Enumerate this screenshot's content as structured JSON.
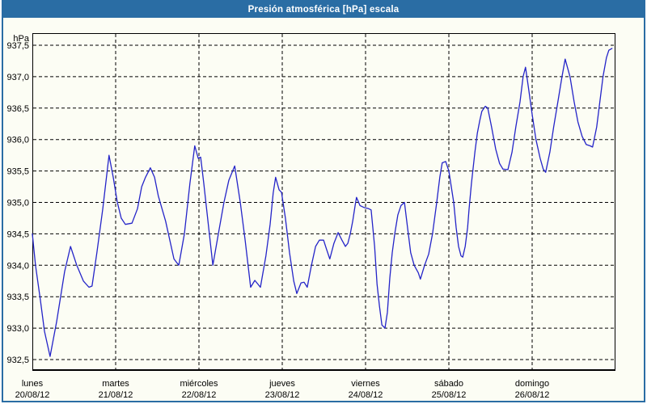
{
  "window": {
    "title": "Presión atmosférica [hPa] escala",
    "titlebar_color": "#2a6da4",
    "background": "#fcfdf4"
  },
  "chart_data": {
    "type": "line",
    "title": "Presión atmosférica [hPa] escala",
    "y_unit": "hPa",
    "ylabel": "hPa",
    "xlabel": "",
    "y_min": 932.5,
    "y_max": 937.5,
    "y_step": 0.5,
    "y_tick_labels": [
      "937,5",
      "937,0",
      "936,5",
      "936,0",
      "935,5",
      "935,0",
      "934,5",
      "934,0",
      "933,5",
      "933,0",
      "932,5"
    ],
    "grid": "dashed-black",
    "grid_color": "#000000",
    "line_color": "#2424c8",
    "legend": "none",
    "x_span_hours": 168,
    "x_days": [
      {
        "name": "lunes",
        "date": "20/08/12"
      },
      {
        "name": "martes",
        "date": "21/08/12"
      },
      {
        "name": "miércoles",
        "date": "22/08/12"
      },
      {
        "name": "jueves",
        "date": "23/08/12"
      },
      {
        "name": "viernes",
        "date": "24/08/12"
      },
      {
        "name": "sábado",
        "date": "25/08/12"
      },
      {
        "name": "domingo",
        "date": "26/08/12"
      }
    ],
    "series": [
      {
        "name": "Presión atmosférica",
        "unit": "hPa",
        "points_hours_value": [
          [
            0.0,
            934.5
          ],
          [
            0.9,
            934.0
          ],
          [
            2.3,
            933.45
          ],
          [
            3.5,
            932.95
          ],
          [
            5.1,
            932.55
          ],
          [
            7.0,
            933.1
          ],
          [
            9.3,
            933.9
          ],
          [
            11.0,
            934.3
          ],
          [
            12.8,
            934.0
          ],
          [
            14.7,
            933.75
          ],
          [
            16.3,
            933.65
          ],
          [
            17.2,
            933.67
          ],
          [
            18.6,
            934.2
          ],
          [
            20.3,
            934.9
          ],
          [
            22.1,
            935.75
          ],
          [
            23.3,
            935.4
          ],
          [
            24.5,
            935.0
          ],
          [
            25.6,
            934.75
          ],
          [
            26.8,
            934.65
          ],
          [
            28.7,
            934.67
          ],
          [
            30.3,
            934.9
          ],
          [
            31.5,
            935.25
          ],
          [
            32.6,
            935.4
          ],
          [
            34.0,
            935.55
          ],
          [
            35.2,
            935.4
          ],
          [
            36.3,
            935.1
          ],
          [
            38.4,
            934.7
          ],
          [
            40.8,
            934.1
          ],
          [
            42.2,
            934.0
          ],
          [
            43.8,
            934.5
          ],
          [
            45.4,
            935.3
          ],
          [
            46.8,
            935.9
          ],
          [
            47.8,
            935.7
          ],
          [
            48.5,
            935.72
          ],
          [
            49.4,
            935.3
          ],
          [
            50.8,
            934.6
          ],
          [
            52.0,
            934.0
          ],
          [
            53.6,
            934.5
          ],
          [
            55.2,
            935.0
          ],
          [
            56.6,
            935.35
          ],
          [
            58.3,
            935.58
          ],
          [
            59.9,
            935.0
          ],
          [
            61.3,
            934.4
          ],
          [
            62.9,
            933.65
          ],
          [
            64.1,
            933.76
          ],
          [
            65.7,
            933.65
          ],
          [
            67.3,
            934.15
          ],
          [
            68.5,
            934.65
          ],
          [
            69.4,
            935.15
          ],
          [
            70.1,
            935.4
          ],
          [
            71.1,
            935.2
          ],
          [
            71.8,
            935.16
          ],
          [
            72.9,
            934.75
          ],
          [
            74.1,
            934.2
          ],
          [
            75.3,
            933.75
          ],
          [
            76.2,
            933.55
          ],
          [
            77.4,
            933.72
          ],
          [
            78.3,
            933.73
          ],
          [
            79.2,
            933.65
          ],
          [
            80.4,
            934.0
          ],
          [
            81.6,
            934.3
          ],
          [
            82.7,
            934.4
          ],
          [
            83.9,
            934.4
          ],
          [
            84.8,
            934.25
          ],
          [
            85.7,
            934.1
          ],
          [
            86.9,
            934.35
          ],
          [
            88.1,
            934.52
          ],
          [
            89.2,
            934.4
          ],
          [
            90.2,
            934.3
          ],
          [
            90.9,
            934.35
          ],
          [
            91.6,
            934.5
          ],
          [
            92.3,
            934.7
          ],
          [
            93.0,
            934.95
          ],
          [
            93.4,
            935.08
          ],
          [
            94.4,
            934.95
          ],
          [
            95.5,
            934.92
          ],
          [
            96.9,
            934.9
          ],
          [
            97.6,
            934.88
          ],
          [
            98.6,
            934.3
          ],
          [
            99.3,
            933.7
          ],
          [
            100.0,
            933.35
          ],
          [
            100.7,
            933.05
          ],
          [
            101.6,
            933.0
          ],
          [
            102.3,
            933.25
          ],
          [
            103.0,
            933.8
          ],
          [
            103.7,
            934.2
          ],
          [
            104.4,
            934.5
          ],
          [
            105.3,
            934.8
          ],
          [
            106.2,
            934.95
          ],
          [
            107.2,
            935.0
          ],
          [
            108.1,
            934.6
          ],
          [
            109.0,
            934.2
          ],
          [
            110.0,
            934.0
          ],
          [
            111.2,
            933.88
          ],
          [
            111.8,
            933.78
          ],
          [
            113.0,
            934.0
          ],
          [
            114.2,
            934.18
          ],
          [
            115.3,
            934.5
          ],
          [
            116.5,
            935.0
          ],
          [
            117.4,
            935.4
          ],
          [
            118.1,
            935.63
          ],
          [
            119.1,
            935.65
          ],
          [
            120.0,
            935.5
          ],
          [
            120.7,
            935.25
          ],
          [
            121.4,
            935.0
          ],
          [
            122.1,
            934.6
          ],
          [
            122.8,
            934.3
          ],
          [
            123.5,
            934.15
          ],
          [
            124.0,
            934.13
          ],
          [
            124.7,
            934.3
          ],
          [
            125.4,
            934.6
          ],
          [
            125.8,
            934.88
          ],
          [
            126.5,
            935.3
          ],
          [
            127.5,
            935.8
          ],
          [
            128.2,
            936.1
          ],
          [
            128.9,
            936.3
          ],
          [
            129.5,
            936.45
          ],
          [
            130.5,
            936.53
          ],
          [
            131.2,
            936.5
          ],
          [
            132.3,
            936.2
          ],
          [
            133.5,
            935.85
          ],
          [
            134.6,
            935.62
          ],
          [
            135.6,
            935.53
          ],
          [
            137.0,
            935.52
          ],
          [
            138.2,
            935.8
          ],
          [
            139.3,
            936.2
          ],
          [
            140.5,
            936.6
          ],
          [
            141.4,
            937.0
          ],
          [
            142.1,
            937.15
          ],
          [
            143.0,
            936.8
          ],
          [
            144.0,
            936.4
          ],
          [
            145.1,
            936.0
          ],
          [
            146.3,
            935.7
          ],
          [
            147.2,
            935.53
          ],
          [
            147.9,
            935.48
          ],
          [
            149.1,
            935.8
          ],
          [
            150.2,
            936.2
          ],
          [
            151.4,
            936.6
          ],
          [
            152.6,
            937.0
          ],
          [
            153.5,
            937.28
          ],
          [
            154.9,
            937.0
          ],
          [
            156.1,
            936.6
          ],
          [
            157.2,
            936.28
          ],
          [
            158.4,
            936.05
          ],
          [
            159.6,
            935.92
          ],
          [
            160.7,
            935.9
          ],
          [
            161.4,
            935.88
          ],
          [
            162.6,
            936.2
          ],
          [
            163.5,
            936.6
          ],
          [
            164.4,
            937.0
          ],
          [
            165.4,
            937.3
          ],
          [
            166.1,
            937.42
          ],
          [
            167.0,
            937.45
          ]
        ]
      }
    ]
  }
}
